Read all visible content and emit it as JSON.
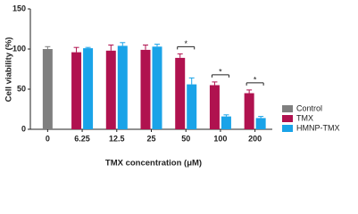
{
  "chart_data": {
    "type": "bar",
    "x_label": "TMX concentration (μM)",
    "y_label": "Cell viability (%)",
    "categories": [
      "0",
      "6.25",
      "12.5",
      "25",
      "50",
      "100",
      "200"
    ],
    "series": [
      {
        "name": "Control",
        "color": "#7f7f7f",
        "values": [
          100,
          null,
          null,
          null,
          null,
          null,
          null
        ],
        "errors": [
          3,
          null,
          null,
          null,
          null,
          null,
          null
        ]
      },
      {
        "name": "TMX",
        "color": "#b0124f",
        "values": [
          null,
          96,
          98,
          99,
          89,
          55,
          45
        ],
        "errors": [
          null,
          6,
          7,
          6,
          5,
          4,
          4
        ]
      },
      {
        "name": "HMNP-TMX",
        "color": "#1aa3e8",
        "values": [
          null,
          101,
          104,
          103,
          56,
          16,
          14
        ],
        "errors": [
          null,
          1,
          4,
          3,
          8,
          2,
          2
        ]
      }
    ],
    "ylim": [
      0,
      150
    ],
    "yticks": [
      0,
      50,
      100,
      150
    ],
    "significance": [
      {
        "category": "50",
        "label": "*"
      },
      {
        "category": "100",
        "label": "*"
      },
      {
        "category": "200",
        "label": "*"
      }
    ],
    "legend": "lower right"
  }
}
